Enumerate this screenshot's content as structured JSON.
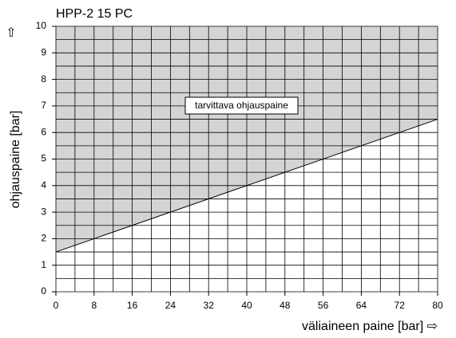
{
  "chart_data": {
    "type": "line",
    "title": "HPP-2 15 PC",
    "xlabel": "väliaineen paine [bar] ⇨",
    "ylabel": "ohjauspaine [bar]",
    "yarrow": "⇧",
    "annotation": "tarvittava ohjauspaine",
    "x": [
      0,
      80
    ],
    "series": [
      {
        "name": "tarvittava ohjauspaine",
        "color": "#000000",
        "fill_above": "#d4d4d4",
        "values": [
          1.5,
          6.5
        ]
      }
    ],
    "xlim": [
      0,
      80
    ],
    "ylim": [
      0,
      10
    ],
    "xticks": [
      0,
      8,
      16,
      24,
      32,
      40,
      48,
      56,
      64,
      72,
      80
    ],
    "yticks": [
      0,
      1,
      2,
      3,
      4,
      5,
      6,
      7,
      8,
      9,
      10
    ],
    "xgrid": [
      0,
      4,
      8,
      12,
      16,
      20,
      24,
      28,
      32,
      36,
      40,
      44,
      48,
      52,
      56,
      60,
      64,
      68,
      72,
      76,
      80
    ],
    "ygrid": [
      0,
      0.5,
      1,
      1.5,
      2,
      2.5,
      3,
      3.5,
      4,
      4.5,
      5,
      5.5,
      6,
      6.5,
      7,
      7.5,
      8,
      8.5,
      9,
      9.5,
      10
    ],
    "grid": true
  }
}
